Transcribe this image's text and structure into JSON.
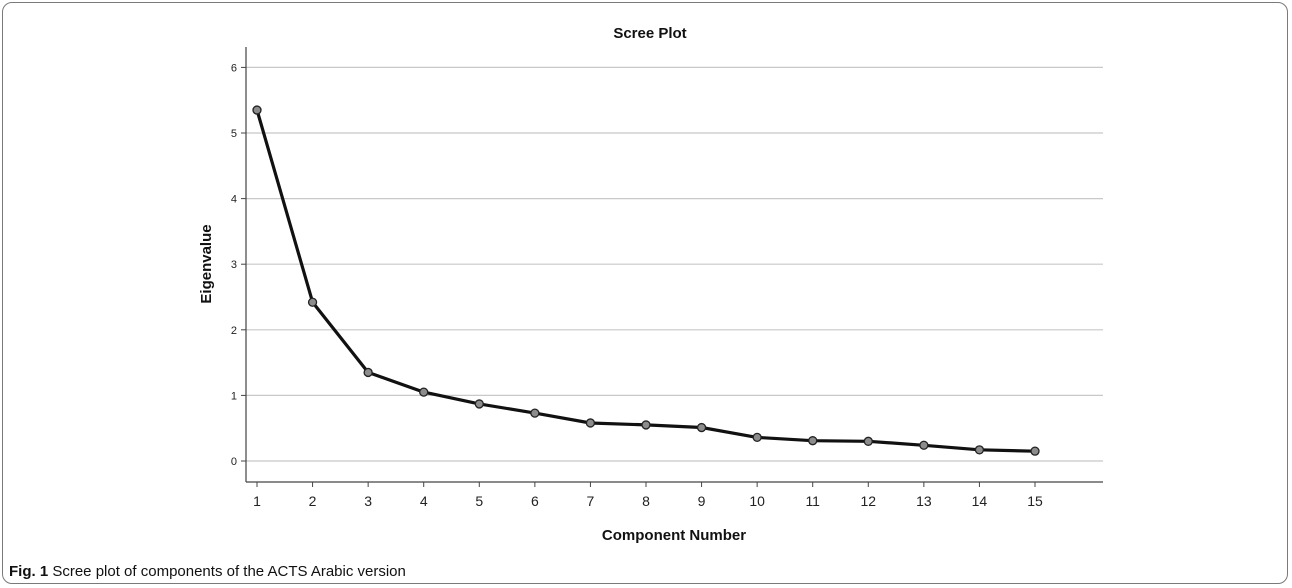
{
  "chart_data": {
    "type": "line",
    "title": "Scree Plot",
    "xlabel": "Component Number",
    "ylabel": "Eigenvalue",
    "x": [
      1,
      2,
      3,
      4,
      5,
      6,
      7,
      8,
      9,
      10,
      11,
      12,
      13,
      14,
      15
    ],
    "y": [
      5.35,
      2.42,
      1.35,
      1.05,
      0.87,
      0.73,
      0.58,
      0.55,
      0.51,
      0.36,
      0.31,
      0.3,
      0.24,
      0.17,
      0.15
    ],
    "ylim": [
      0,
      6
    ],
    "yticks": [
      "0",
      "1",
      "2",
      "3",
      "4",
      "5",
      "6"
    ],
    "xticks": [
      "1",
      "2",
      "3",
      "4",
      "5",
      "6",
      "7",
      "8",
      "9",
      "10",
      "11",
      "12",
      "13",
      "14",
      "15"
    ],
    "grid": "horizontal",
    "colors": {
      "line": "#111111",
      "marker_fill": "#8c8c8c",
      "gridline": "#c8c8c8",
      "axis": "#444444"
    }
  },
  "caption": {
    "label": "Fig. 1",
    "text": "Scree plot of components of the ACTS Arabic version"
  }
}
